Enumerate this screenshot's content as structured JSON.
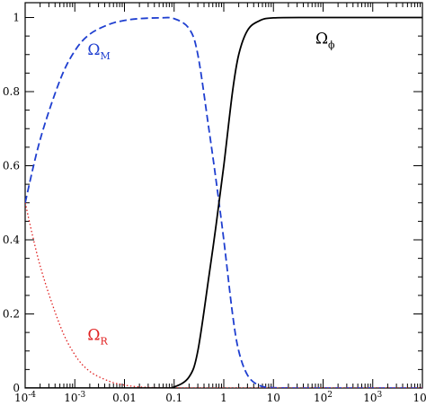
{
  "chart_data": {
    "type": "line",
    "title": "",
    "xlabel": "",
    "ylabel": "",
    "xscale": "log",
    "xlim": [
      0.0001,
      10000
    ],
    "ylim": [
      0,
      1.04
    ],
    "grid": false,
    "legend": "none",
    "x_tick_labels": [
      {
        "x": 0.0001,
        "base": "10",
        "exp": "-4"
      },
      {
        "x": 0.001,
        "base": "10",
        "exp": "-3"
      },
      {
        "x": 0.01,
        "base": "0.01",
        "exp": ""
      },
      {
        "x": 0.1,
        "base": "0.1",
        "exp": ""
      },
      {
        "x": 1,
        "base": "1",
        "exp": ""
      },
      {
        "x": 10,
        "base": "10",
        "exp": ""
      },
      {
        "x": 100,
        "base": "10",
        "exp": "2"
      },
      {
        "x": 1000,
        "base": "10",
        "exp": "3"
      },
      {
        "x": 10000,
        "base": "10",
        "exp": "4"
      }
    ],
    "y_ticks": [
      0,
      0.2,
      0.4,
      0.6,
      0.8,
      1
    ],
    "y_tick_labels": [
      "0",
      "0.2",
      "0.4",
      "0.6",
      "0.8",
      "1"
    ],
    "series": [
      {
        "label_main": "Ω",
        "label_sub": "M",
        "label_at": [
          0.0018,
          0.9
        ],
        "color": "#1f3fd0",
        "dash": "dashed",
        "x": [
          0.0001,
          0.0002,
          0.0005,
          0.001,
          0.002,
          0.005,
          0.01,
          0.02,
          0.05,
          0.1,
          0.2,
          0.3,
          0.5,
          0.7,
          1,
          1.5,
          2,
          3,
          5,
          10,
          100,
          10000
        ],
        "y": [
          0.5,
          0.67,
          0.83,
          0.91,
          0.955,
          0.982,
          0.992,
          0.997,
          0.999,
          0.997,
          0.97,
          0.9,
          0.7,
          0.56,
          0.4,
          0.2,
          0.1,
          0.035,
          0.008,
          0.001,
          0.0,
          0.0
        ]
      },
      {
        "label_main": "Ω",
        "label_sub": "R",
        "label_at": [
          0.0018,
          0.13
        ],
        "color": "#e02020",
        "dash": "dotted",
        "x": [
          0.0001,
          0.0002,
          0.0005,
          0.001,
          0.002,
          0.005,
          0.01,
          0.02,
          0.05,
          0.1,
          0.3,
          1,
          10000
        ],
        "y": [
          0.5,
          0.33,
          0.17,
          0.09,
          0.045,
          0.018,
          0.008,
          0.003,
          0.001,
          0.0005,
          0.0002,
          0.0,
          0.0
        ]
      },
      {
        "label_main": "Ω",
        "label_sub": "ϕ",
        "label_at": [
          70,
          0.93
        ],
        "color": "#000000",
        "dash": "solid",
        "x": [
          0.0001,
          0.05,
          0.1,
          0.2,
          0.3,
          0.5,
          0.7,
          1,
          1.5,
          2,
          3,
          5,
          10,
          100,
          10000
        ],
        "y": [
          0.0,
          0.0,
          0.003,
          0.03,
          0.1,
          0.3,
          0.44,
          0.6,
          0.8,
          0.9,
          0.965,
          0.99,
          0.999,
          1.0,
          1.0
        ]
      }
    ]
  }
}
